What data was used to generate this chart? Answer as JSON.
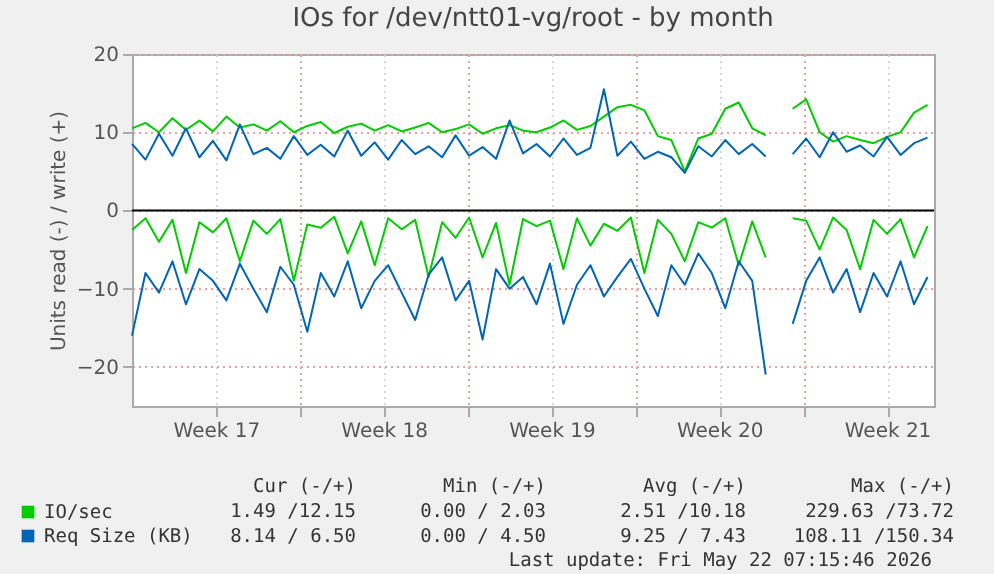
{
  "chart_data": {
    "type": "line",
    "title": "IOs for /dev/ntt01-vg/root - by month",
    "ylabel": "Units read (-) / write (+)",
    "x": [
      "2026-04-20T00:00",
      "2026-04-20T13:30",
      "2026-04-21T03:00",
      "2026-04-21T16:30",
      "2026-04-22T06:00",
      "2026-04-22T19:30",
      "2026-04-23T09:00",
      "2026-04-23T22:30",
      "2026-04-24T12:00",
      "2026-04-25T01:30",
      "2026-04-25T15:00",
      "2026-04-26T04:30",
      "2026-04-26T18:00",
      "2026-04-27T07:30",
      "2026-04-27T21:00",
      "2026-04-28T10:30",
      "2026-04-29T00:00",
      "2026-04-29T13:30",
      "2026-04-30T03:00",
      "2026-04-30T16:30",
      "2026-05-01T06:00",
      "2026-05-01T19:30",
      "2026-05-02T09:00",
      "2026-05-02T22:30",
      "2026-05-03T12:00",
      "2026-05-04T01:30",
      "2026-05-04T15:00",
      "2026-05-05T04:30",
      "2026-05-05T18:00",
      "2026-05-06T07:30",
      "2026-05-06T21:00",
      "2026-05-07T10:30",
      "2026-05-08T00:00",
      "2026-05-08T13:30",
      "2026-05-09T03:00",
      "2026-05-09T16:30",
      "2026-05-10T06:00",
      "2026-05-10T19:30",
      "2026-05-11T09:00",
      "2026-05-11T22:30",
      "2026-05-12T12:00",
      "2026-05-13T01:30",
      "2026-05-13T15:00",
      "2026-05-14T04:30",
      "2026-05-14T18:00",
      "2026-05-15T07:30",
      "2026-05-15T21:00",
      "2026-05-16T10:30",
      "2026-05-17T00:00",
      "2026-05-17T13:30",
      "2026-05-18T03:00",
      "2026-05-18T16:30",
      "2026-05-19T06:00",
      "2026-05-19T19:30",
      "2026-05-20T09:00",
      "2026-05-20T22:30",
      "2026-05-21T12:00",
      "2026-05-22T01:30",
      "2026-05-22T15:00",
      "2026-05-23T04:30"
    ],
    "series": [
      {
        "name": "IO/sec",
        "color": "#00cc00",
        "values": [
          10.5,
          11.2,
          10.0,
          11.8,
          10.3,
          11.5,
          10.1,
          12.0,
          10.6,
          11.0,
          10.2,
          11.4,
          10.0,
          10.8,
          11.3,
          9.9,
          10.7,
          11.1,
          10.2,
          10.9,
          10.1,
          10.6,
          11.2,
          10.0,
          10.4,
          11.0,
          9.8,
          10.5,
          10.9,
          10.2,
          10.0,
          10.6,
          11.5,
          10.3,
          10.8,
          12.0,
          13.2,
          13.5,
          12.8,
          9.5,
          9.0,
          5.0,
          9.2,
          9.8,
          13.0,
          13.8,
          10.5,
          9.6,
          null,
          13.0,
          14.2,
          10.0,
          8.8,
          9.5,
          9.0,
          8.6,
          9.4,
          10.0,
          12.5,
          13.5
        ]
      },
      {
        "name": "Req Size (KB)",
        "color": "#0066b3",
        "values": [
          8.5,
          6.5,
          9.8,
          7.0,
          10.5,
          6.8,
          8.9,
          6.4,
          11.0,
          7.2,
          8.0,
          6.6,
          9.5,
          7.1,
          8.4,
          6.9,
          10.2,
          7.0,
          8.7,
          6.5,
          9.0,
          7.2,
          8.2,
          6.8,
          9.6,
          7.0,
          8.1,
          6.6,
          11.5,
          7.3,
          8.5,
          6.9,
          9.2,
          7.1,
          8.0,
          15.5,
          7.0,
          8.8,
          6.6,
          7.5,
          6.8,
          4.8,
          8.2,
          6.9,
          9.0,
          7.2,
          8.5,
          6.9,
          null,
          7.2,
          9.2,
          6.8,
          10.0,
          7.5,
          8.3,
          6.9,
          9.4,
          7.1,
          8.6,
          9.3
        ]
      },
      {
        "color": "#00cc00",
        "values": [
          -2.5,
          -1.0,
          -4.0,
          -1.2,
          -8.0,
          -1.5,
          -2.8,
          -1.0,
          -6.5,
          -1.3,
          -3.0,
          -1.1,
          -9.0,
          -1.8,
          -2.2,
          -0.8,
          -5.5,
          -1.4,
          -7.0,
          -1.0,
          -2.4,
          -1.2,
          -8.5,
          -1.5,
          -3.5,
          -0.9,
          -6.0,
          -1.6,
          -9.5,
          -1.1,
          -2.0,
          -1.3,
          -7.5,
          -1.0,
          -4.5,
          -1.7,
          -2.6,
          -0.9,
          -8.0,
          -1.2,
          -3.0,
          -6.5,
          -1.5,
          -2.2,
          -1.0,
          -7.0,
          -1.4,
          -6.0,
          null,
          -1.0,
          -1.3,
          -5.0,
          -0.9,
          -2.5,
          -7.5,
          -1.2,
          -3.0,
          -1.1,
          -6.0,
          -2.0
        ]
      },
      {
        "color": "#0066b3",
        "values": [
          -16.0,
          -8.0,
          -10.5,
          -6.5,
          -12.0,
          -7.5,
          -9.0,
          -11.5,
          -6.8,
          -10.0,
          -13.0,
          -7.2,
          -9.5,
          -15.5,
          -8.0,
          -11.0,
          -6.5,
          -12.5,
          -9.0,
          -7.0,
          -10.5,
          -14.0,
          -8.2,
          -6.0,
          -11.5,
          -9.0,
          -16.5,
          -7.5,
          -10.0,
          -8.5,
          -12.0,
          -6.8,
          -14.5,
          -9.5,
          -7.0,
          -11.0,
          -8.5,
          -6.2,
          -10.0,
          -13.5,
          -7.0,
          -9.5,
          -5.5,
          -8.0,
          -12.5,
          -6.5,
          -9.0,
          -21.0,
          null,
          -14.5,
          -9.0,
          -6.0,
          -10.5,
          -7.5,
          -13.0,
          -8.0,
          -11.0,
          -6.5,
          -12.0,
          -8.5
        ]
      }
    ],
    "xlim": [
      "2026-04-20T00:00",
      "2026-05-23T11:00"
    ],
    "xticks": [
      {
        "value": "2026-04-23T12:00",
        "label": "Week 17"
      },
      {
        "value": "2026-04-27",
        "label": null
      },
      {
        "value": "2026-04-30T12:00",
        "label": "Week 18"
      },
      {
        "value": "2026-05-04",
        "label": null
      },
      {
        "value": "2026-05-07T12:00",
        "label": "Week 19"
      },
      {
        "value": "2026-05-11",
        "label": null
      },
      {
        "value": "2026-05-14T12:00",
        "label": "Week 20"
      },
      {
        "value": "2026-05-18",
        "label": null
      },
      {
        "value": "2026-05-21T12:00",
        "label": "Week 21"
      }
    ],
    "ylim": [
      -25,
      20
    ],
    "yticks": [
      -20,
      -10,
      0,
      10,
      20
    ],
    "ref_lines": [
      {
        "axis": "y",
        "value": 0,
        "color": "#000000"
      }
    ],
    "grid": true,
    "legend": "bottom left",
    "marker": "none",
    "line_style": "solid",
    "annotations": [
      "Cur (-/+)",
      "Min (-/+)",
      "Avg (-/+)",
      "Max (-/+)",
      "1.49 /12.15",
      "0.00 / 2.03",
      "2.51 /10.18",
      "229.63 /73.72",
      "8.14 / 6.50",
      "0.00 / 4.50",
      "9.25 / 7.43",
      "108.11 /150.34",
      "Last update: Fri May 22 07:15:46 2026"
    ]
  }
}
